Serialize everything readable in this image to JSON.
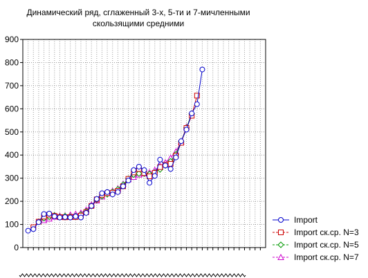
{
  "chart_data": {
    "type": "line",
    "title_lines": [
      "Динамический ряд, сглаженный 3-х, 5-ти и 7-мичленными",
      "скользящими средними"
    ],
    "xlabel": "",
    "ylabel": "",
    "ylim": [
      0,
      900
    ],
    "yticks": [
      0,
      100,
      200,
      300,
      400,
      500,
      600,
      700,
      800,
      900
    ],
    "grid": true,
    "legend_position": "bottom-right",
    "x": [
      1,
      2,
      3,
      4,
      5,
      6,
      7,
      8,
      9,
      10,
      11,
      12,
      13,
      14,
      15,
      16,
      17,
      18,
      19,
      20,
      21,
      22,
      23,
      24,
      25,
      26,
      27,
      28,
      29,
      30,
      31,
      32,
      33,
      34,
      35,
      36,
      37,
      38,
      39,
      40,
      41,
      42,
      43,
      44,
      45
    ],
    "series": [
      {
        "name": "Import",
        "color": "#0000cc",
        "marker": "circle",
        "values": [
          73,
          80,
          110,
          145,
          147,
          135,
          130,
          132,
          130,
          135,
          130,
          150,
          180,
          210,
          235,
          240,
          230,
          240,
          265,
          290,
          335,
          350,
          335,
          280,
          310,
          380,
          355,
          340,
          390,
          460,
          510,
          580,
          620,
          770,
          null,
          null,
          null,
          null,
          null,
          null,
          null,
          null,
          null,
          null,
          null
        ]
      },
      {
        "name": "Import ск.ср. N=3",
        "color": "#cc0000",
        "marker": "square",
        "values": [
          null,
          88,
          112,
          134,
          142,
          137,
          132,
          131,
          132,
          132,
          138,
          153,
          180,
          208,
          228,
          235,
          237,
          245,
          265,
          297,
          325,
          340,
          322,
          308,
          323,
          348,
          358,
          362,
          397,
          453,
          517,
          570,
          657,
          null,
          null,
          null,
          null,
          null,
          null,
          null,
          null,
          null,
          null,
          null,
          null
        ]
      },
      {
        "name": "Import ск.ср. N=5",
        "color": "#009900",
        "marker": "diamond",
        "values": [
          null,
          null,
          111,
          127,
          133,
          139,
          133,
          136,
          134,
          136,
          143,
          157,
          180,
          206,
          222,
          231,
          241,
          252,
          272,
          298,
          315,
          320,
          320,
          318,
          325,
          338,
          355,
          373,
          403,
          458,
          518,
          578,
          null,
          null,
          null,
          null,
          null,
          null,
          null,
          null,
          null,
          null,
          null,
          null,
          null
        ]
      },
      {
        "name": "Import ск.ср. N=7",
        "color": "#cc00cc",
        "marker": "triangle",
        "values": [
          null,
          null,
          null,
          118,
          125,
          133,
          137,
          138,
          142,
          145,
          150,
          163,
          185,
          203,
          220,
          235,
          245,
          255,
          275,
          295,
          305,
          315,
          320,
          325,
          335,
          352,
          368,
          388,
          415,
          458,
          522,
          null,
          null,
          null,
          null,
          null,
          null,
          null,
          null,
          null,
          null,
          null,
          null,
          null,
          null
        ]
      }
    ]
  }
}
